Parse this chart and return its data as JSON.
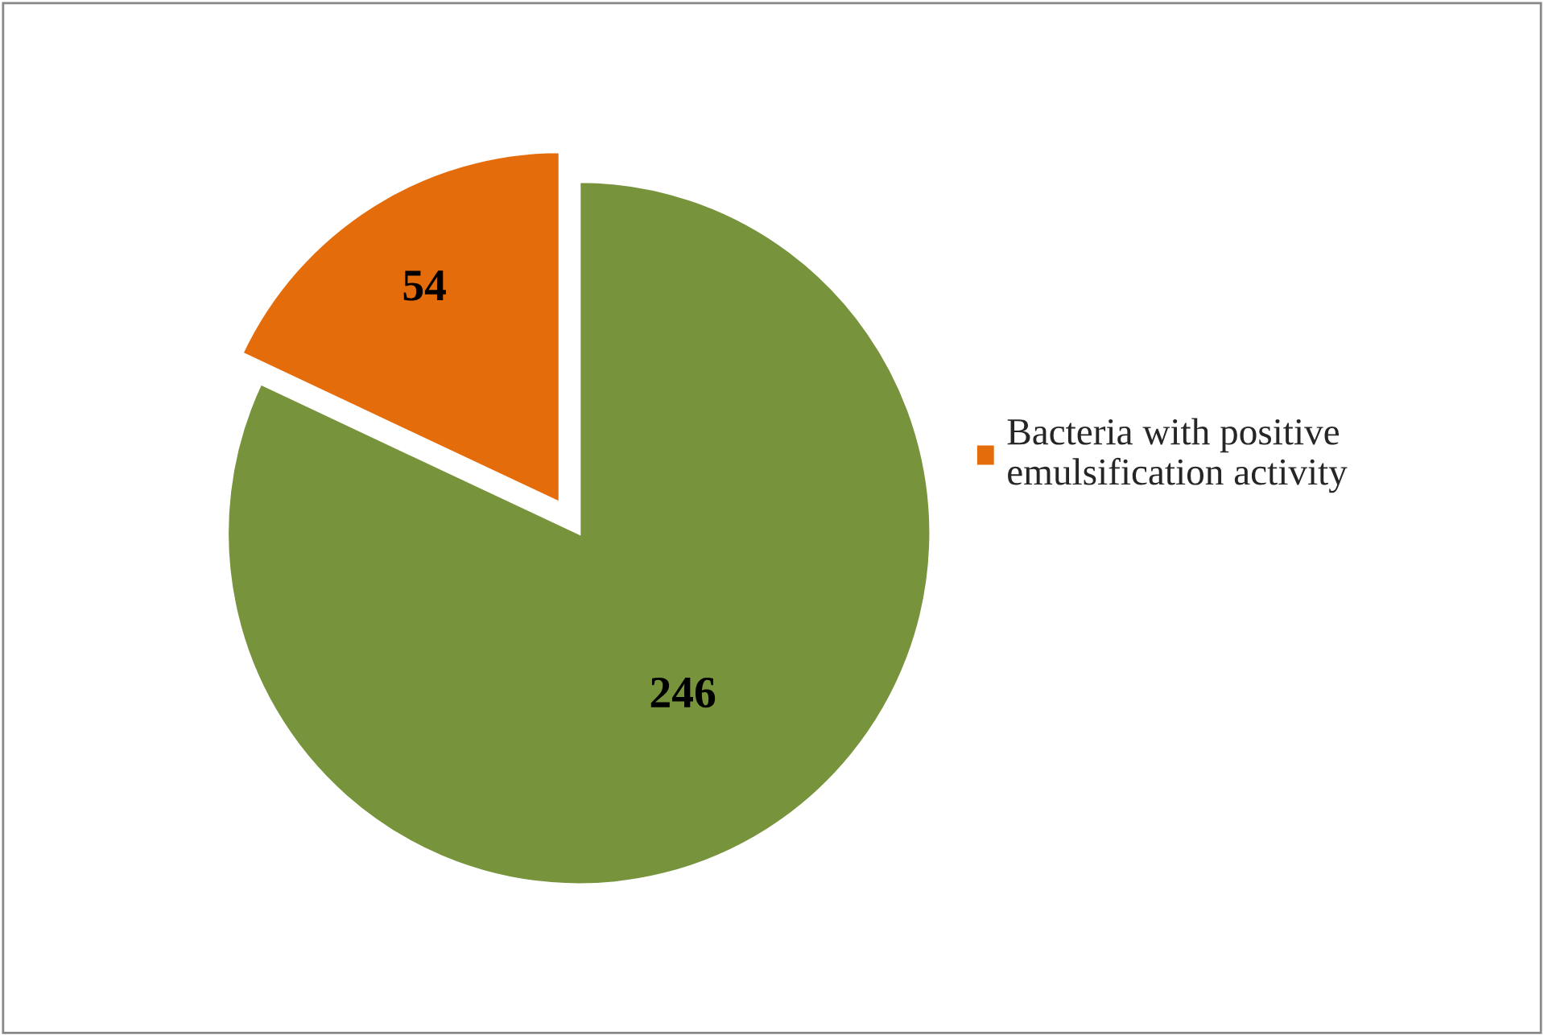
{
  "chart_data": {
    "type": "pie",
    "categories": [
      null,
      "Bacteria with positive emulsification activity"
    ],
    "values": [
      246,
      54
    ],
    "colors": [
      "#77933c",
      "#e46c0a"
    ],
    "data_labels": true,
    "legend": "right"
  }
}
